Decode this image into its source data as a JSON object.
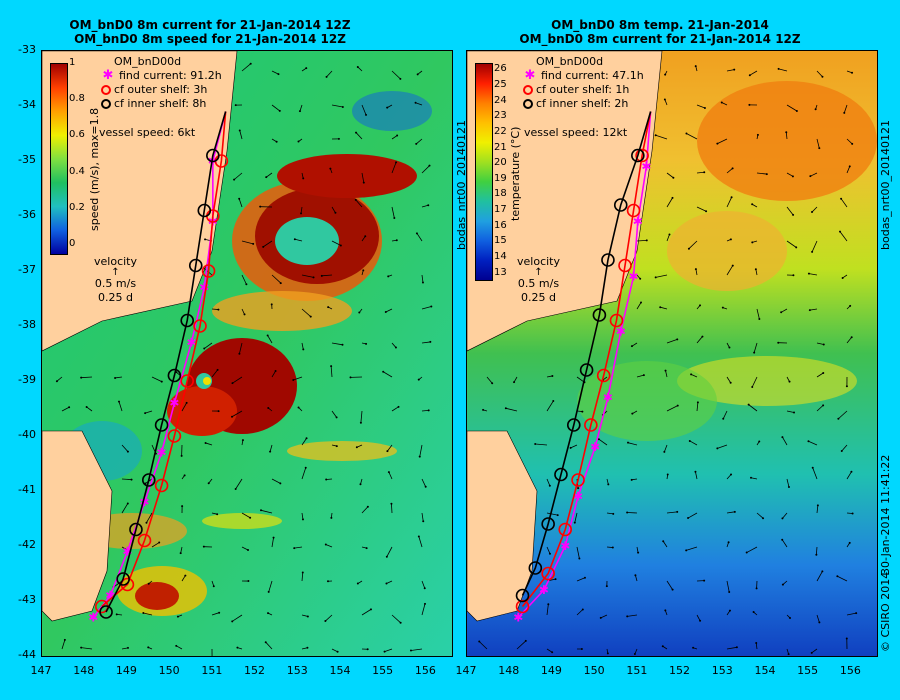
{
  "left": {
    "title1": "OM_bnD0 8m current for 21-Jan-2014 12Z",
    "title2": "OM_bnD0 8m speed for 21-Jan-2014 12Z",
    "model": "OM_bnD00d",
    "legend": [
      "find current: 91.2h",
      "cf outer shelf: 3h",
      "cf inner shelf: 8h"
    ],
    "vessel": "vessel speed: 6kt",
    "cbar_label": "speed (m/s), max=1.8",
    "cbar_ticks": [
      "1",
      "0.8",
      "0.6",
      "0.4",
      "0.2",
      "0"
    ],
    "velocity": [
      "velocity",
      "0.5 m/s",
      "0.25 d"
    ],
    "side_label": "bodas_nrt00_20140121"
  },
  "right": {
    "title1": "OM_bnD0 8m temp. 21-Jan-2014",
    "title2": "OM_bnD0 8m current for 21-Jan-2014 12Z",
    "model": "OM_bnD00d",
    "legend": [
      "find current: 47.1h",
      "cf outer shelf: 1h",
      "cf inner shelf: 2h"
    ],
    "vessel": "vessel speed: 12kt",
    "cbar_label": "temperature (°C)",
    "cbar_ticks": [
      "26",
      "25",
      "24",
      "23",
      "22",
      "21",
      "20",
      "19",
      "18",
      "17",
      "16",
      "15",
      "14",
      "13"
    ],
    "velocity": [
      "velocity",
      "0.5 m/s",
      "0.25 d"
    ],
    "side_label": "bodas_nrt00_20140121"
  },
  "footer": {
    "timestamp": "30-Jan-2014 11:41:22",
    "copyright": "© CSIRO 2014"
  },
  "axes": {
    "lat_ticks": [
      "-33",
      "-34",
      "-35",
      "-36",
      "-37",
      "-38",
      "-39",
      "-40",
      "-41",
      "-42",
      "-43",
      "-44"
    ],
    "lon_ticks": [
      "147",
      "148",
      "149",
      "150",
      "151",
      "152",
      "153",
      "154",
      "155",
      "156"
    ],
    "lat_range": [
      -44,
      -33
    ],
    "lon_range": [
      147,
      156.6
    ]
  },
  "colors": {
    "background": "#00d8ff",
    "land": "#ffd09e",
    "find_current": "#ff00ff",
    "outer_shelf": "#ff0000",
    "inner_shelf": "#000000"
  },
  "tracks": {
    "inner_shelf_left": [
      [
        151.3,
        -34.1
      ],
      [
        151.0,
        -34.9
      ],
      [
        150.8,
        -35.9
      ],
      [
        150.6,
        -36.9
      ],
      [
        150.4,
        -37.9
      ],
      [
        150.1,
        -38.9
      ],
      [
        149.8,
        -39.8
      ],
      [
        149.5,
        -40.8
      ],
      [
        149.2,
        -41.7
      ],
      [
        148.9,
        -42.6
      ],
      [
        148.5,
        -43.2
      ]
    ],
    "outer_shelf_left": [
      [
        151.3,
        -34.1
      ],
      [
        151.2,
        -35.0
      ],
      [
        151.0,
        -36.0
      ],
      [
        150.9,
        -37.0
      ],
      [
        150.7,
        -38.0
      ],
      [
        150.4,
        -39.0
      ],
      [
        150.1,
        -40.0
      ],
      [
        149.8,
        -40.9
      ],
      [
        149.4,
        -41.9
      ],
      [
        149.0,
        -42.7
      ],
      [
        148.4,
        -43.1
      ]
    ],
    "find_left": [
      [
        151.3,
        -34.1
      ],
      [
        151.0,
        -35.0
      ],
      [
        151.0,
        -36.1
      ],
      [
        150.8,
        -37.3
      ],
      [
        150.5,
        -38.3
      ],
      [
        150.1,
        -39.4
      ],
      [
        149.8,
        -40.3
      ],
      [
        149.4,
        -41.2
      ],
      [
        149.0,
        -42.1
      ],
      [
        148.6,
        -42.9
      ],
      [
        148.2,
        -43.3
      ]
    ],
    "inner_shelf_right": [
      [
        151.3,
        -34.1
      ],
      [
        151.0,
        -34.9
      ],
      [
        150.6,
        -35.8
      ],
      [
        150.3,
        -36.8
      ],
      [
        150.1,
        -37.8
      ],
      [
        149.8,
        -38.8
      ],
      [
        149.5,
        -39.8
      ],
      [
        149.2,
        -40.7
      ],
      [
        148.9,
        -41.6
      ],
      [
        148.6,
        -42.4
      ],
      [
        148.3,
        -42.9
      ]
    ],
    "outer_shelf_right": [
      [
        151.3,
        -34.1
      ],
      [
        151.1,
        -34.9
      ],
      [
        150.9,
        -35.9
      ],
      [
        150.7,
        -36.9
      ],
      [
        150.5,
        -37.9
      ],
      [
        150.2,
        -38.9
      ],
      [
        149.9,
        -39.8
      ],
      [
        149.6,
        -40.8
      ],
      [
        149.3,
        -41.7
      ],
      [
        148.9,
        -42.5
      ],
      [
        148.3,
        -43.1
      ]
    ],
    "find_right": [
      [
        151.3,
        -34.1
      ],
      [
        151.2,
        -35.1
      ],
      [
        151.0,
        -36.1
      ],
      [
        150.9,
        -37.1
      ],
      [
        150.6,
        -38.1
      ],
      [
        150.3,
        -39.3
      ],
      [
        150.0,
        -40.2
      ],
      [
        149.6,
        -41.1
      ],
      [
        149.3,
        -42.0
      ],
      [
        148.8,
        -42.8
      ],
      [
        148.2,
        -43.3
      ]
    ]
  }
}
